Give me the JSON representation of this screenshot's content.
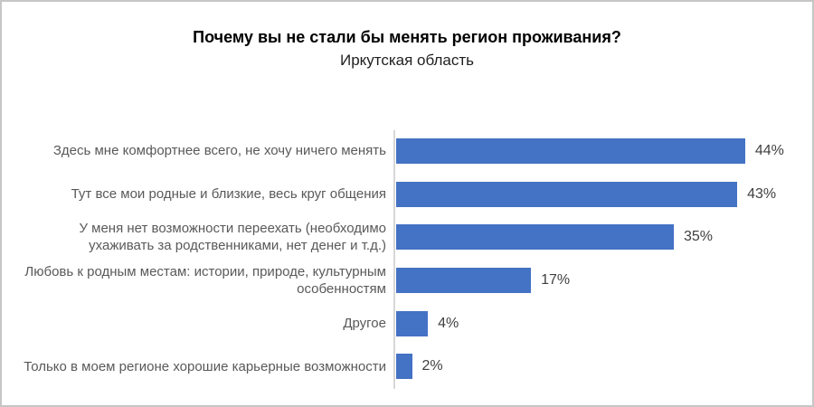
{
  "window": {
    "background_color": "#ffffff",
    "border_color": "#c6c6c6"
  },
  "chart_data": {
    "type": "bar",
    "orientation": "horizontal",
    "title": "Почему вы не стали бы менять регион проживания?",
    "subtitle": "Иркутская область",
    "categories": [
      "Здесь мне комфортнее всего, не хочу ничего менять",
      "Тут все мои родные и близкие, весь круг общения",
      "У меня нет возможности переехать (необходимо\nухаживать за родственниками, нет денег и т.д.)",
      "Любовь к родным местам: истории, природе, культурным\nособенностям",
      "Другое",
      "Только в моем регионе хорошие карьерные возможности"
    ],
    "values": [
      44,
      43,
      35,
      17,
      4,
      2
    ],
    "values_display": [
      "44%",
      "43%",
      "35%",
      "17%",
      "4%",
      "2%"
    ],
    "xlabel": "",
    "ylabel": "",
    "xlim": [
      0,
      50
    ],
    "grid": false,
    "legend": false,
    "bar_color": "#4472C4",
    "axis_line_color": "#d7d7d7",
    "category_label_color": "#595959",
    "value_label_color": "#404040"
  }
}
